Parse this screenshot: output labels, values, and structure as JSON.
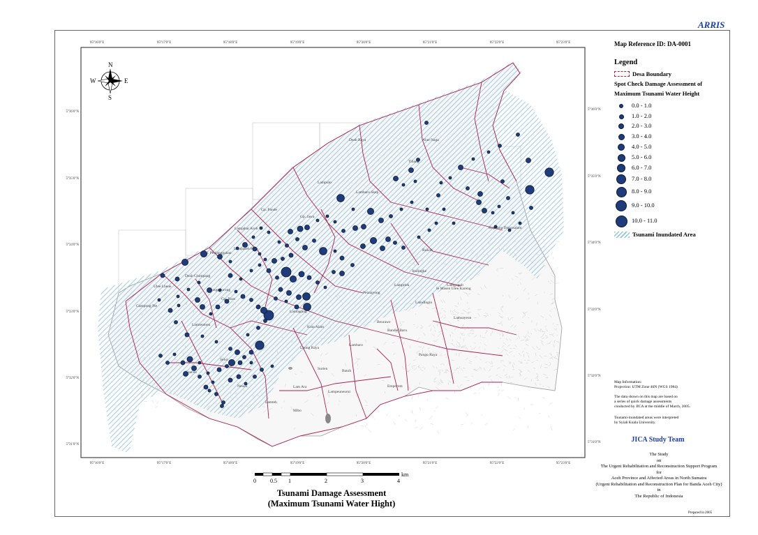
{
  "brand": "ARRIS",
  "map_reference": "Map Reference ID: DA-0001",
  "legend": {
    "title": "Legend",
    "boundary": "Desa Boundary",
    "spot_title_1": "Spot Check Damage Assessment of",
    "spot_title_2": "Maximum Tsunami Water Height",
    "classes": [
      "0.0 - 1.0",
      "1.0 - 2.0",
      "2.0 - 3.0",
      "3.0 - 4.0",
      "4.0 - 5.0",
      "5.0 - 6.0",
      "6.0 - 7.0",
      "7.0 - 8.0",
      "8.0 - 9.0",
      "9.0 - 10.0",
      "10.0 - 11.0"
    ],
    "inundated": "Tsunami Inundated Area"
  },
  "map_info": {
    "heading": "Map Information:",
    "projection": "Projection: UTM Zone 46N (WGS 1984)",
    "note1_a": "The data shown on this map are based on",
    "note1_b": "a series of quick damage assessments",
    "note1_c": "conducted by JICA at the middle of March, 2005.",
    "note2_a": "Tsunami-inundated areas were interpreted",
    "note2_b": "by Syiah Kuala University."
  },
  "team": "JICA Study Team",
  "study": {
    "l1": "The Study",
    "l2": "on",
    "l3": "The Urgent Rehabilitation and Reconstruction Support Program",
    "l4": "for",
    "l5": "Aceh Province and Affected Areas in North Sumatra",
    "l6": "(Urgent Rehabilitation and Reconstruction Plan for Banda Aceh City)",
    "l7": "in",
    "l8": "The Republic of Indonesia"
  },
  "prepared": "Prepared in 2005",
  "title_1": "Tsunami Damage Assessment",
  "title_2": "(Maximum Tsunami Water Hight)",
  "compass": {
    "n": "N",
    "s": "S",
    "e": "E",
    "w": "W"
  },
  "scale": {
    "labels": [
      "0",
      "0.5",
      "1",
      "2",
      "3",
      "4"
    ],
    "unit": "km"
  },
  "grid": {
    "top_lon": [
      "95°16'0\"E",
      "95°17'0\"E",
      "95°18'0\"E",
      "95°19'0\"E",
      "95°20'0\"E",
      "95°21'0\"E",
      "95°22'0\"E",
      "95°23'0\"E"
    ],
    "bottom_lon": [
      "95°16'0\"E",
      "95°17'0\"E",
      "95°18'0\"E",
      "95°19'0\"E",
      "95°20'0\"E",
      "95°21'0\"E",
      "95°22'0\"E",
      "95°23'0\"E"
    ],
    "left_lat": [
      "5°36'0\"N",
      "5°35'0\"N",
      "5°34'0\"N",
      "5°33'0\"N",
      "5°32'0\"N",
      "5°31'0\"N"
    ],
    "right_lat": [
      "5°36'0\"N",
      "5°35'0\"N",
      "5°34'0\"N",
      "5°33'0\"N",
      "5°32'0\"N",
      "5°31'0\"N"
    ]
  },
  "place_names": [
    "Alue Naga",
    "Deah Raya",
    "Tibang",
    "Lambaro Skep",
    "Lampulo",
    "Gp. Pande",
    "Gp. Jawa",
    "Lamjabat Aceh",
    "Kel. Peulanggahan",
    "Ulee Lheue",
    "Deah Glumpang",
    "Lampaseh Kota",
    "Punge Jurong",
    "Lamteumen",
    "Gp. Baro",
    "Kuta Alam",
    "Beurawe",
    "Lamdingin",
    "Lambaro",
    "Kopelma Darussalam",
    "Rukoh",
    "Lamgugob",
    "Jeulingke",
    "Peunayong",
    "Lampriek",
    "Bandar Baru",
    "Lamlagang",
    "Geuceu",
    "Setui",
    "Neusu",
    "Lamteh",
    "Mibo",
    "Lhong Raya",
    "Lampeuneurut",
    "Ie Masen Ulee Kareng",
    "Pango Raya",
    "Lamsayeun",
    "Batoh",
    "Emperom",
    "Surien",
    "Lam Ara",
    "Gampong Pie"
  ]
}
